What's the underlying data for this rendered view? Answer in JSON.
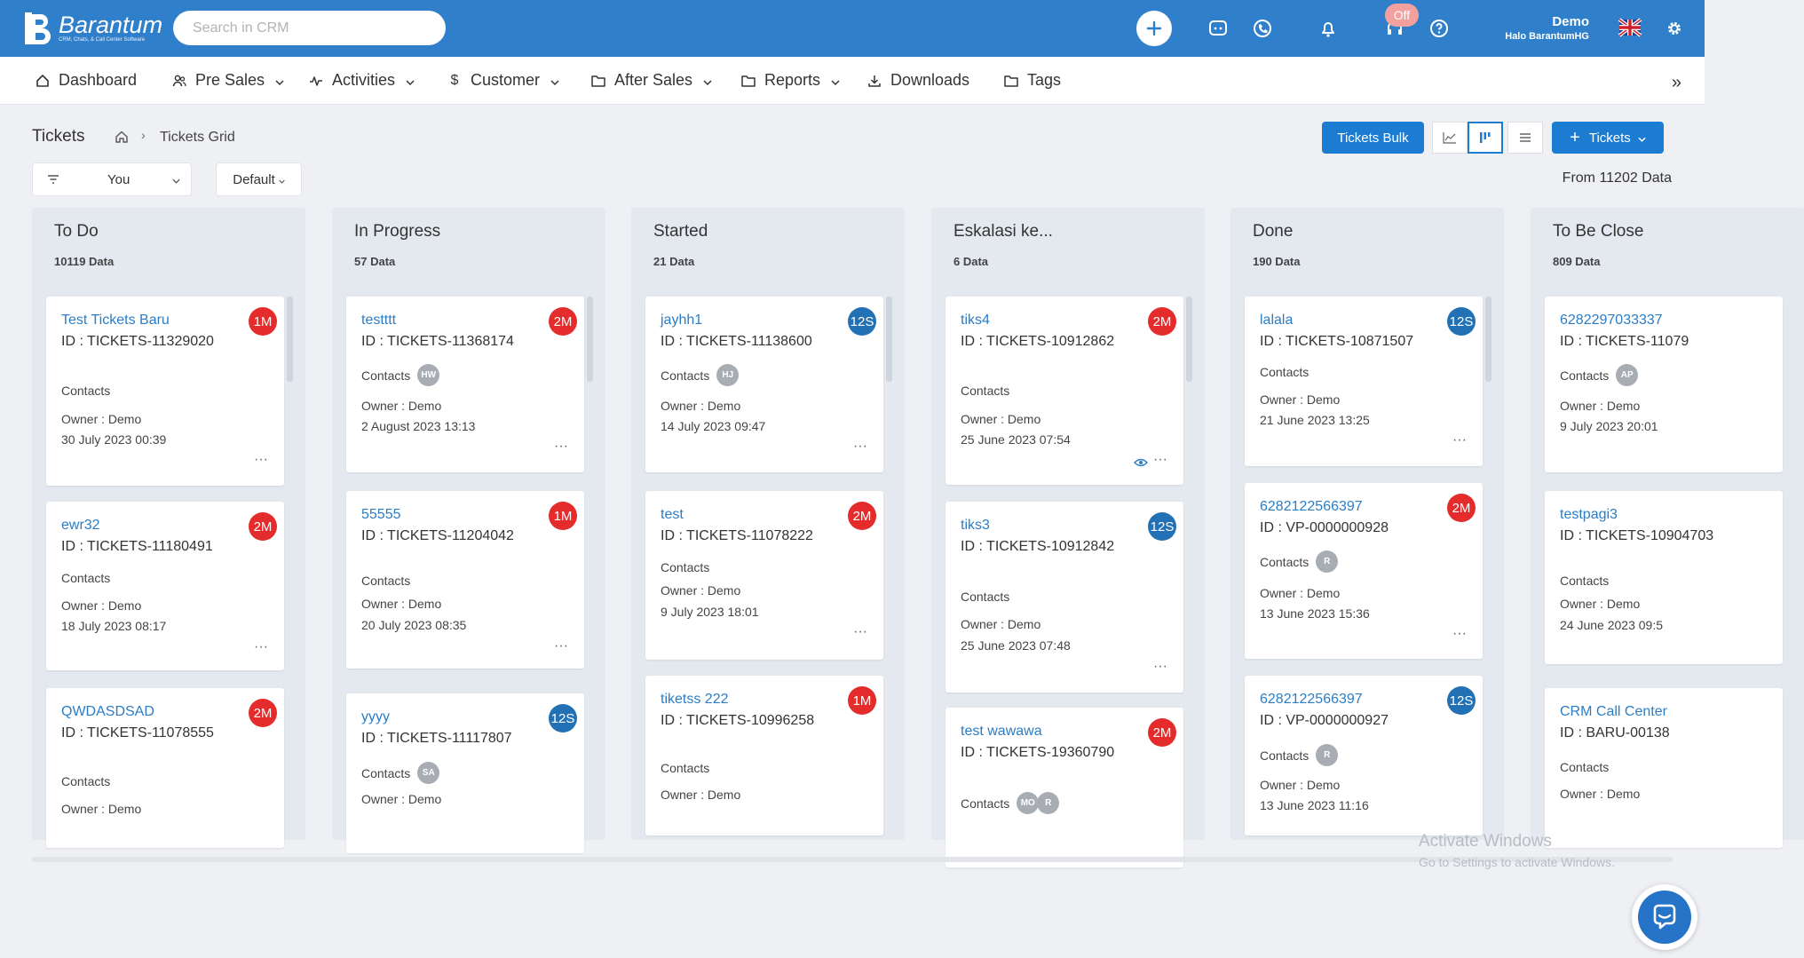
{
  "app": {
    "logo_name": "Barantum",
    "logo_sub": "CRM, Chats, & Call Center Software",
    "search_placeholder": "Search in CRM",
    "off_badge": "Off",
    "user_name": "Demo",
    "user_company": "Halo BarantumHG"
  },
  "colors": {
    "header": "#2f7fca",
    "primary": "#1b7cd2",
    "badge_red": "#e42c2c",
    "badge_blue": "#2371b5"
  },
  "nav": {
    "items": [
      {
        "label": "Dashboard",
        "icon": "home-icon"
      },
      {
        "label": "Pre Sales",
        "icon": "users-icon"
      },
      {
        "label": "Activities",
        "icon": "activity-icon"
      },
      {
        "label": "Customer",
        "icon": "dollar-icon"
      },
      {
        "label": "After Sales",
        "icon": "folder-icon"
      },
      {
        "label": "Reports",
        "icon": "folder-icon"
      },
      {
        "label": "Downloads",
        "icon": "download-icon"
      },
      {
        "label": "Tags",
        "icon": "folder-icon"
      }
    ],
    "more": "»"
  },
  "page": {
    "title": "Tickets",
    "breadcrumb_sep": "›",
    "breadcrumb_current": "Tickets Grid",
    "bulk_button": "Tickets Bulk",
    "add_button": "Tickets",
    "filter_user": "You",
    "filter_sort": "Default",
    "from_data": "From 11202 Data"
  },
  "columns": [
    {
      "title": "To Do",
      "count": "10119 Data",
      "cards": [
        {
          "title": "Test Tickets Baru",
          "id": "ID : TICKETS-11329020",
          "badge": "1M",
          "badge_color": "red",
          "contacts": "Contacts",
          "avatars": [],
          "owner": "Owner : Demo",
          "date": "30 July 2023 00:39"
        },
        {
          "title": "ewr32",
          "id": "ID : TICKETS-11180491",
          "badge": "2M",
          "badge_color": "red",
          "contacts": "Contacts",
          "avatars": [],
          "owner": "Owner : Demo",
          "date": "18 July 2023 08:17"
        },
        {
          "title": "QWDASDSAD",
          "id": "ID : TICKETS-11078555",
          "badge": "2M",
          "badge_color": "red",
          "contacts": "Contacts",
          "avatars": [],
          "owner": "Owner : Demo",
          "date": ""
        }
      ]
    },
    {
      "title": "In Progress",
      "count": "57 Data",
      "cards": [
        {
          "title": "testttt",
          "id": "ID : TICKETS-11368174",
          "badge": "2M",
          "badge_color": "red",
          "contacts": "Contacts",
          "avatars": [
            "HW"
          ],
          "owner": "Owner : Demo",
          "date": "2 August 2023 13:13"
        },
        {
          "title": "55555",
          "id": "ID : TICKETS-11204042",
          "badge": "1M",
          "badge_color": "red",
          "contacts": "Contacts",
          "avatars": [],
          "owner": "Owner : Demo",
          "date": "20 July 2023 08:35"
        },
        {
          "title": "yyyy",
          "id": "ID : TICKETS-11117807",
          "badge": "12S",
          "badge_color": "blue",
          "contacts": "Contacts",
          "avatars": [
            "SA"
          ],
          "owner": "Owner : Demo",
          "date": ""
        }
      ]
    },
    {
      "title": "Started",
      "count": "21 Data",
      "cards": [
        {
          "title": "jayhh1",
          "id": "ID : TICKETS-11138600",
          "badge": "12S",
          "badge_color": "blue",
          "contacts": "Contacts",
          "avatars": [
            "HJ"
          ],
          "owner": "Owner : Demo",
          "date": "14 July 2023 09:47"
        },
        {
          "title": "test",
          "id": "ID : TICKETS-11078222",
          "badge": "2M",
          "badge_color": "red",
          "contacts": "Contacts",
          "avatars": [],
          "owner": "Owner : Demo",
          "date": "9 July 2023 18:01"
        },
        {
          "title": "tiketss 222",
          "id": "ID : TICKETS-10996258",
          "badge": "1M",
          "badge_color": "red",
          "contacts": "Contacts",
          "avatars": [],
          "owner": "Owner : Demo",
          "date": ""
        }
      ]
    },
    {
      "title": "Eskalasi ke...",
      "count": "6 Data",
      "cards": [
        {
          "title": "tiks4",
          "id": "ID : TICKETS-10912862",
          "badge": "2M",
          "badge_color": "red",
          "contacts": "Contacts",
          "avatars": [],
          "owner": "Owner : Demo",
          "date": "25 June 2023 07:54"
        },
        {
          "title": "tiks3",
          "id": "ID : TICKETS-10912842",
          "badge": "12S",
          "badge_color": "blue",
          "contacts": "Contacts",
          "avatars": [],
          "owner": "Owner : Demo",
          "date": "25 June 2023 07:48"
        },
        {
          "title": "test wawawa",
          "id": "ID : TICKETS-19360790",
          "badge": "2M",
          "badge_color": "red",
          "contacts": "Contacts",
          "avatars": [
            "MO",
            "R"
          ],
          "owner": "",
          "date": ""
        }
      ]
    },
    {
      "title": "Done",
      "count": "190 Data",
      "cards": [
        {
          "title": "lalala",
          "id": "ID : TICKETS-10871507",
          "badge": "12S",
          "badge_color": "blue",
          "contacts": "Contacts",
          "avatars": [],
          "owner": "Owner : Demo",
          "date": "21 June 2023 13:25"
        },
        {
          "title": "6282122566397",
          "id": "ID : VP-0000000928",
          "badge": "2M",
          "badge_color": "red",
          "contacts": "Contacts",
          "avatars": [
            "R"
          ],
          "owner": "Owner : Demo",
          "date": "13 June 2023 15:36"
        },
        {
          "title": "6282122566397",
          "id": "ID : VP-0000000927",
          "badge": "12S",
          "badge_color": "blue",
          "contacts": "Contacts",
          "avatars": [
            "R"
          ],
          "owner": "Owner : Demo",
          "date": "13 June 2023 11:16"
        }
      ]
    },
    {
      "title": "To Be Close",
      "count": "809 Data",
      "cards": [
        {
          "title": "6282297033337",
          "id": "ID : TICKETS-11079",
          "badge": "",
          "badge_color": "",
          "contacts": "Contacts",
          "avatars": [
            "AP"
          ],
          "owner": "Owner : Demo",
          "date": "9 July 2023 20:01"
        },
        {
          "title": "testpagi3",
          "id": "ID : TICKETS-10904703",
          "badge": "",
          "badge_color": "",
          "contacts": "Contacts",
          "avatars": [],
          "owner": "Owner : Demo",
          "date": "24 June 2023 09:5"
        },
        {
          "title": "CRM Call Center",
          "id": "ID : BARU-00138",
          "badge": "",
          "badge_color": "",
          "contacts": "Contacts",
          "avatars": [],
          "owner": "Owner : Demo",
          "date": ""
        }
      ]
    }
  ],
  "watermark": {
    "title": "Activate Windows",
    "sub": "Go to Settings to activate Windows."
  }
}
